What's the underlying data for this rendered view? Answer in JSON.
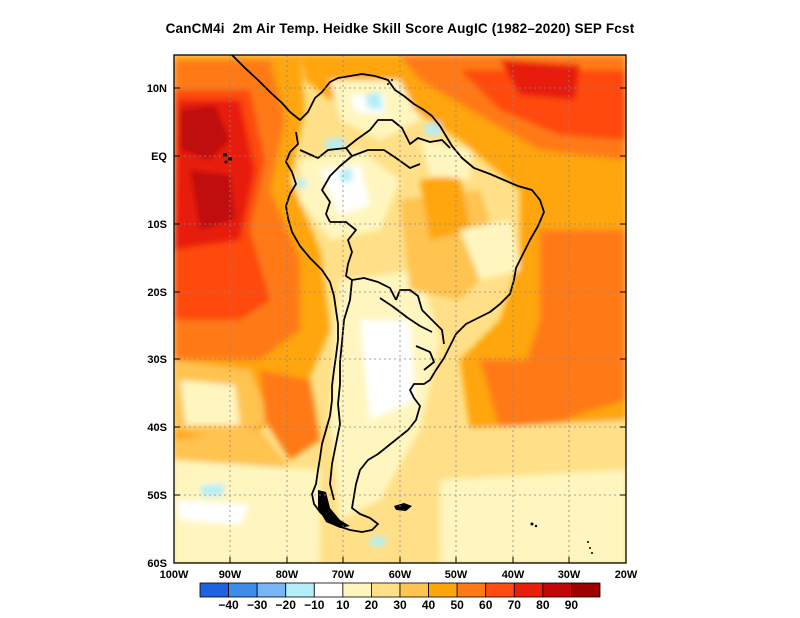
{
  "title": "CanCM4i  2m Air Temp. Heidke Skill Score AugIC (1982–2020) SEP Fcst",
  "lat_labels": [
    "10N",
    "EQ",
    "10S",
    "20S",
    "30S",
    "40S",
    "50S",
    "60S"
  ],
  "lon_labels": [
    "100W",
    "90W",
    "80W",
    "70W",
    "60W",
    "50W",
    "40W",
    "30W",
    "20W"
  ],
  "colorbar": {
    "colors": [
      "#1f62e0",
      "#3c8cec",
      "#76b6f4",
      "#b4eef8",
      "#ffffff",
      "#fff6bf",
      "#ffe088",
      "#ffc350",
      "#ffa50c",
      "#ff7a14",
      "#ff4a10",
      "#e81e0a",
      "#c00808",
      "#9c0000"
    ],
    "labels": [
      "−40",
      "−30",
      "−20",
      "−10",
      "10",
      "20",
      "30",
      "40",
      "50",
      "60",
      "70",
      "80",
      "90"
    ]
  },
  "palette": {
    "white": "#ffffff",
    "pale_yellow": "#fff6bf",
    "light_yellow": "#ffe088",
    "yellow_orange": "#ffc350",
    "orange": "#ffa50c",
    "dark_orange": "#ff7a14",
    "red_orange": "#ff4a10",
    "red": "#e81e0a",
    "dark_red": "#c00808",
    "light_blue": "#b4eef8"
  }
}
